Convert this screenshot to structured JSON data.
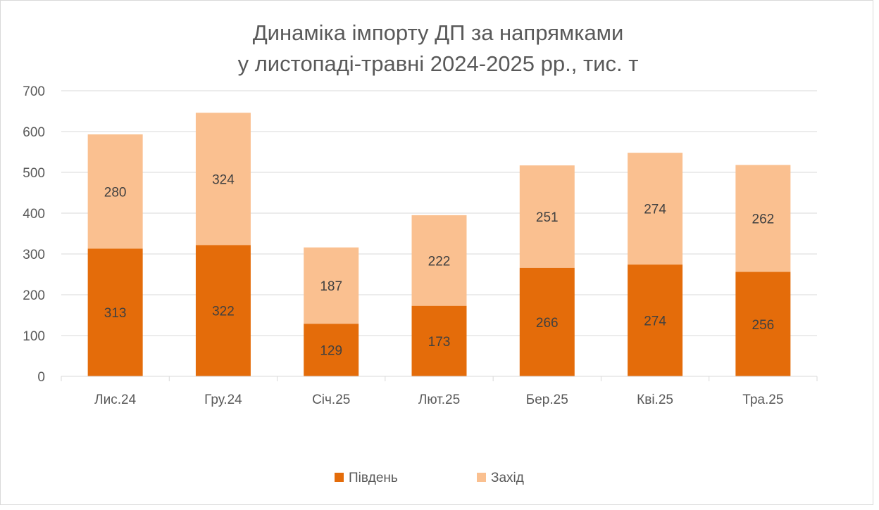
{
  "chart_data": {
    "type": "bar",
    "stacked": true,
    "title": "Динаміка імпорту ДП за напрямками",
    "subtitle": "у листопаді-травні 2024-2025 рр., тис. т",
    "categories": [
      "Лис.24",
      "Гру.24",
      "Січ.25",
      "Лют.25",
      "Бер.25",
      "Кві.25",
      "Тра.25"
    ],
    "series": [
      {
        "name": "Південь",
        "color": "#e46c0a",
        "values": [
          313,
          322,
          129,
          173,
          266,
          274,
          256
        ]
      },
      {
        "name": "Захід",
        "color": "#fac090",
        "values": [
          280,
          324,
          187,
          222,
          251,
          274,
          262
        ]
      }
    ],
    "ylim": [
      0,
      700
    ],
    "yticks": [
      0,
      100,
      200,
      300,
      400,
      500,
      600,
      700
    ],
    "grid": true,
    "legend_position": "bottom",
    "data_labels": true
  }
}
